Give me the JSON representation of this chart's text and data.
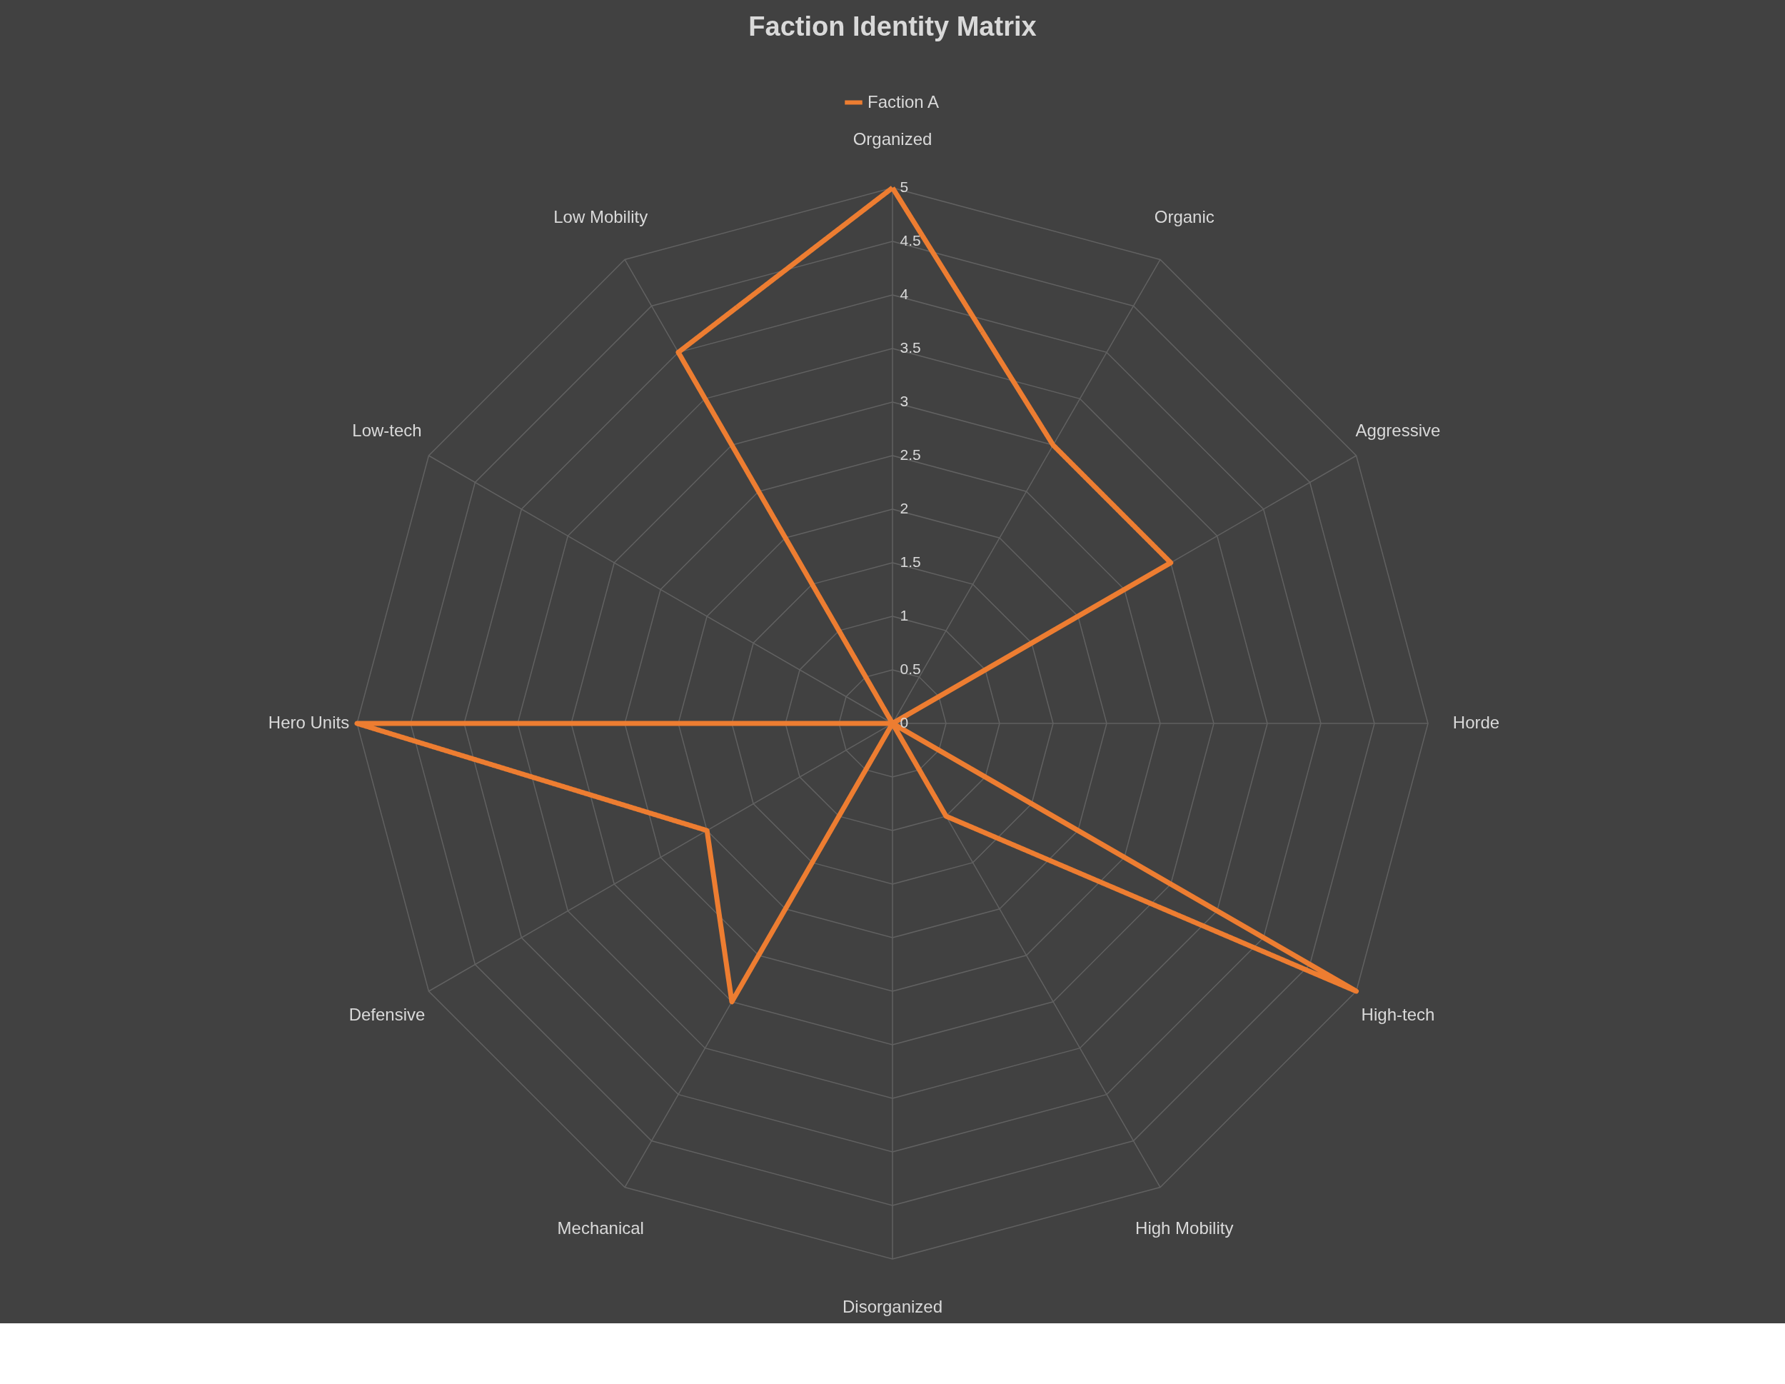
{
  "chart_data": {
    "type": "radar",
    "title": "Faction Identity Matrix",
    "categories": [
      "Organized",
      "Organic",
      "Aggressive",
      "Horde",
      "High-tech",
      "High Mobility",
      "Disorganized",
      "Mechanical",
      "Defensive",
      "Hero Units",
      "Low-tech",
      "Low Mobility"
    ],
    "series": [
      {
        "name": "Faction A",
        "color": "#ed7d31",
        "values": [
          5,
          3,
          3,
          0,
          5,
          1,
          0,
          3,
          2,
          5,
          0,
          4
        ]
      }
    ],
    "ylim": [
      0,
      5
    ],
    "yticks": [
      0,
      0.5,
      1,
      1.5,
      2,
      2.5,
      3,
      3.5,
      4,
      4.5,
      5
    ],
    "grid": true,
    "legend": "top",
    "line_style": "solid"
  }
}
